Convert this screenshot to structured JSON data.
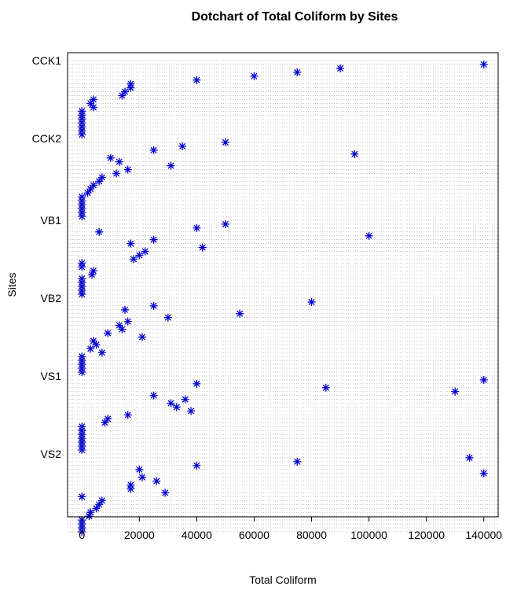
{
  "chart_data": {
    "type": "scatter",
    "title": "Dotchart of Total Coliform by Sites",
    "xlabel": "Total Coliform",
    "ylabel": "Sites",
    "xlim": [
      -5000,
      145000
    ],
    "xticks": [
      0,
      20000,
      40000,
      60000,
      80000,
      100000,
      120000,
      140000
    ],
    "grid": true,
    "marker": "asterisk",
    "color": "#0000cc",
    "groups": [
      {
        "label": "CCK1",
        "values": [
          140000,
          90000,
          75000,
          60000,
          40000,
          17000,
          17000,
          15000,
          14000,
          4000,
          3000,
          4000,
          0,
          0,
          0,
          0,
          0,
          0,
          0
        ]
      },
      {
        "label": "CCK2",
        "values": [
          50000,
          35000,
          25000,
          95000,
          10000,
          13000,
          31000,
          16000,
          12000,
          7000,
          6000,
          4000,
          3000,
          2000,
          0,
          0,
          0,
          0,
          0,
          0
        ]
      },
      {
        "label": "VB1",
        "values": [
          50000,
          40000,
          6000,
          100000,
          25000,
          17000,
          42000,
          22000,
          20000,
          18000,
          0,
          0,
          4000,
          3500,
          0,
          0,
          0,
          0,
          0
        ]
      },
      {
        "label": "VB2",
        "values": [
          80000,
          25000,
          15000,
          55000,
          30000,
          16000,
          13000,
          14000,
          9000,
          21000,
          4000,
          5000,
          3000,
          7000,
          0,
          0,
          0,
          0,
          0
        ]
      },
      {
        "label": "VS1",
        "values": [
          140000,
          40000,
          85000,
          130000,
          25000,
          36000,
          31000,
          33000,
          38000,
          16000,
          9000,
          8000,
          0,
          0,
          0,
          0,
          0,
          0,
          0
        ]
      },
      {
        "label": "VS2",
        "values": [
          135000,
          75000,
          40000,
          20000,
          140000,
          21000,
          26000,
          17000,
          17000,
          29000,
          0,
          7000,
          6000,
          5000,
          3000,
          2500,
          0,
          0,
          0,
          0
        ]
      }
    ]
  }
}
